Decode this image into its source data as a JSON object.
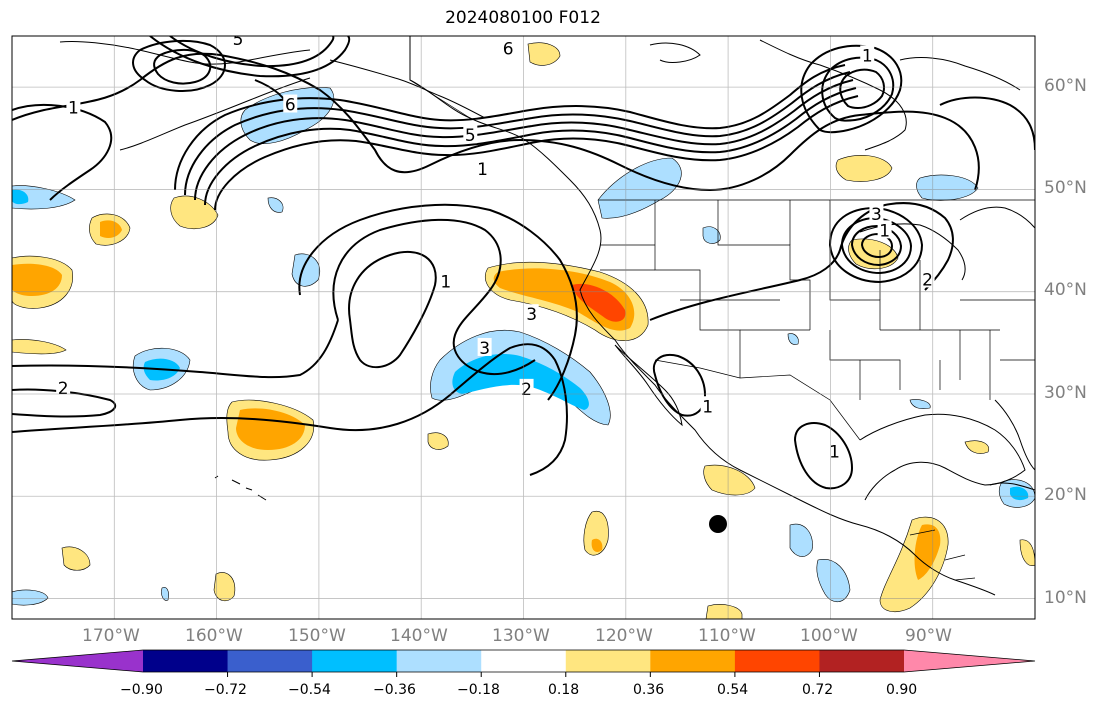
{
  "title": "2024080100 F012",
  "lon_labels": [
    "170°W",
    "160°W",
    "150°W",
    "140°W",
    "130°W",
    "120°W",
    "110°W",
    "100°W",
    "90°W"
  ],
  "lat_labels": [
    "60°N",
    "50°N",
    "40°N",
    "30°N",
    "20°N",
    "10°N"
  ],
  "colorbar": {
    "tick_labels": [
      "−0.90",
      "−0.72",
      "−0.54",
      "−0.36",
      "−0.18",
      "0.18",
      "0.36",
      "0.54",
      "0.72",
      "0.90"
    ],
    "colors": [
      "#9932CC",
      "#00008B",
      "#3A5FCD",
      "#00BFFF",
      "#ADDFFF",
      "#FFFFFF",
      "#FFE680",
      "#FFA500",
      "#FF4500",
      "#B22222",
      "#FF88AA"
    ]
  },
  "contour_labels": [
    {
      "text": "1",
      "lon": -174,
      "lat": 58
    },
    {
      "text": "2",
      "lon": -175,
      "lat": 30.6
    },
    {
      "text": "1",
      "lon": -137.6,
      "lat": 41
    },
    {
      "text": "3",
      "lon": -133.8,
      "lat": 34.5
    },
    {
      "text": "2",
      "lon": -129.7,
      "lat": 30.5
    },
    {
      "text": "3",
      "lon": -129.2,
      "lat": 37.8
    },
    {
      "text": "1",
      "lon": -134,
      "lat": 52
    },
    {
      "text": "5",
      "lon": -135.2,
      "lat": 55.3
    },
    {
      "text": "6",
      "lon": -131.5,
      "lat": 63.8
    },
    {
      "text": "5",
      "lon": -157.9,
      "lat": 64.7
    },
    {
      "text": "6",
      "lon": -152.8,
      "lat": 58.3
    },
    {
      "text": "1",
      "lon": -96.4,
      "lat": 63.1
    },
    {
      "text": "1",
      "lon": -94.7,
      "lat": 46
    },
    {
      "text": "3",
      "lon": -95.5,
      "lat": 47.6
    },
    {
      "text": "2",
      "lon": -90.5,
      "lat": 41.2
    },
    {
      "text": "1",
      "lon": -112,
      "lat": 28.8
    },
    {
      "text": "1",
      "lon": -99.6,
      "lat": 24.4
    }
  ],
  "map_extent": {
    "lon_min": -180,
    "lon_max": -80,
    "lat_min": 8,
    "lat_max": 65
  }
}
